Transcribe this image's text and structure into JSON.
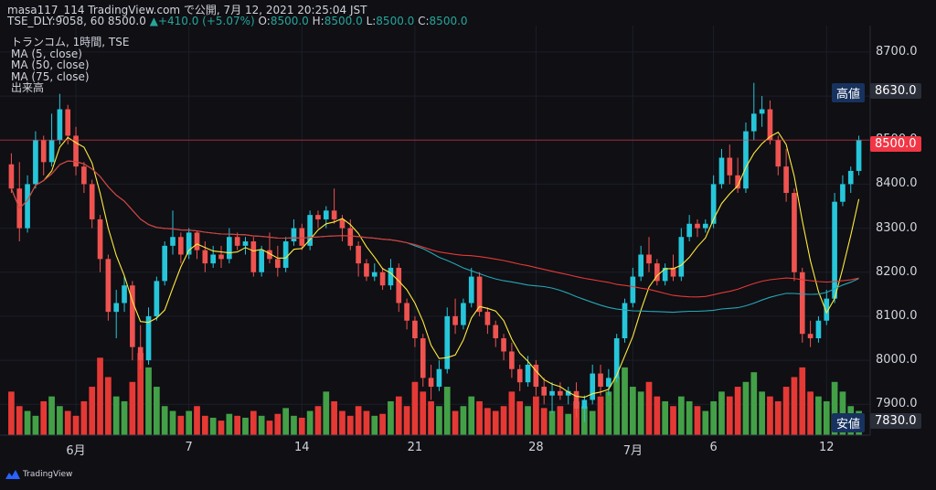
{
  "header": {
    "line1": "masa117_114 TradingView.com で公開, 7月 12, 2021 20:25:04 JST",
    "symbol_line": "TSE_DLY:9058, 60 8500.0",
    "change_arrow": "▲",
    "change": "+410.0 (+5.07%)",
    "ohlc": [
      {
        "label": "O:",
        "value": "8500.0"
      },
      {
        "label": "H:",
        "value": "8500.0"
      },
      {
        "label": "L:",
        "value": "8500.0"
      },
      {
        "label": "C:",
        "value": "8500.0"
      }
    ]
  },
  "legend": [
    "トランコム, 1時間, TSE",
    "MA (5, close)",
    "MA (50, close)",
    "MA (75, close)",
    "出来高"
  ],
  "price_tags": {
    "high_label": "高値",
    "high_value": "8630.0",
    "current_value": "8500.0",
    "low_label": "安値",
    "low_value": "7830.0"
  },
  "footer": {
    "brand": "TradingView"
  },
  "colors": {
    "background": "#0f0f14",
    "up": "#26c6da",
    "down": "#ef5350",
    "vol_up": "#43a047",
    "vol_down": "#e53935",
    "ma5": "#ffeb3b",
    "ma50": "#26a6b5",
    "ma75": "#e53935"
  },
  "chart_data": {
    "type": "candlestick",
    "title": "トランコム, 1時間, TSE",
    "ylim": [
      7830,
      8760
    ],
    "y_ticks": [
      "8700.0",
      "8600.0",
      "8500.0",
      "8400.0",
      "8300.0",
      "8200.0",
      "8100.0",
      "8000.0",
      "7900.0"
    ],
    "x_ticks": [
      "6月",
      "7",
      "14",
      "21",
      "28",
      "7月",
      "6",
      "12"
    ],
    "x_tick_bar_index": [
      8,
      22,
      36,
      50,
      65,
      77,
      87,
      101
    ],
    "highest": 8630.0,
    "lowest": 7830.0,
    "last_close": 8500.0,
    "ohlc": [
      {
        "o": 8445,
        "h": 8470,
        "l": 8380,
        "c": 8390
      },
      {
        "o": 8390,
        "h": 8450,
        "l": 8270,
        "c": 8300
      },
      {
        "o": 8300,
        "h": 8420,
        "l": 8290,
        "c": 8400
      },
      {
        "o": 8400,
        "h": 8520,
        "l": 8390,
        "c": 8500
      },
      {
        "o": 8500,
        "h": 8510,
        "l": 8420,
        "c": 8450
      },
      {
        "o": 8450,
        "h": 8560,
        "l": 8440,
        "c": 8500
      },
      {
        "o": 8500,
        "h": 8605,
        "l": 8490,
        "c": 8570
      },
      {
        "o": 8570,
        "h": 8580,
        "l": 8490,
        "c": 8510
      },
      {
        "o": 8510,
        "h": 8530,
        "l": 8420,
        "c": 8440
      },
      {
        "o": 8440,
        "h": 8450,
        "l": 8380,
        "c": 8400
      },
      {
        "o": 8400,
        "h": 8410,
        "l": 8300,
        "c": 8320
      },
      {
        "o": 8320,
        "h": 8330,
        "l": 8200,
        "c": 8230
      },
      {
        "o": 8230,
        "h": 8240,
        "l": 8090,
        "c": 8110
      },
      {
        "o": 8110,
        "h": 8160,
        "l": 8050,
        "c": 8130
      },
      {
        "o": 8130,
        "h": 8190,
        "l": 8110,
        "c": 8170
      },
      {
        "o": 8170,
        "h": 8180,
        "l": 8000,
        "c": 8030
      },
      {
        "o": 8030,
        "h": 8080,
        "l": 7980,
        "c": 8000
      },
      {
        "o": 8000,
        "h": 8120,
        "l": 7990,
        "c": 8100
      },
      {
        "o": 8100,
        "h": 8190,
        "l": 8090,
        "c": 8180
      },
      {
        "o": 8180,
        "h": 8270,
        "l": 8170,
        "c": 8260
      },
      {
        "o": 8260,
        "h": 8340,
        "l": 8240,
        "c": 8280
      },
      {
        "o": 8280,
        "h": 8290,
        "l": 8220,
        "c": 8240
      },
      {
        "o": 8240,
        "h": 8300,
        "l": 8230,
        "c": 8290
      },
      {
        "o": 8290,
        "h": 8295,
        "l": 8230,
        "c": 8250
      },
      {
        "o": 8250,
        "h": 8270,
        "l": 8200,
        "c": 8220
      },
      {
        "o": 8220,
        "h": 8260,
        "l": 8210,
        "c": 8240
      },
      {
        "o": 8240,
        "h": 8260,
        "l": 8210,
        "c": 8230
      },
      {
        "o": 8230,
        "h": 8300,
        "l": 8220,
        "c": 8280
      },
      {
        "o": 8280,
        "h": 8290,
        "l": 8250,
        "c": 8260
      },
      {
        "o": 8260,
        "h": 8280,
        "l": 8240,
        "c": 8270
      },
      {
        "o": 8270,
        "h": 8280,
        "l": 8190,
        "c": 8200
      },
      {
        "o": 8200,
        "h": 8260,
        "l": 8190,
        "c": 8250
      },
      {
        "o": 8250,
        "h": 8290,
        "l": 8220,
        "c": 8230
      },
      {
        "o": 8230,
        "h": 8260,
        "l": 8190,
        "c": 8210
      },
      {
        "o": 8210,
        "h": 8280,
        "l": 8200,
        "c": 8270
      },
      {
        "o": 8270,
        "h": 8320,
        "l": 8260,
        "c": 8300
      },
      {
        "o": 8300,
        "h": 8310,
        "l": 8250,
        "c": 8260
      },
      {
        "o": 8260,
        "h": 8340,
        "l": 8250,
        "c": 8330
      },
      {
        "o": 8330,
        "h": 8340,
        "l": 8300,
        "c": 8320
      },
      {
        "o": 8320,
        "h": 8350,
        "l": 8300,
        "c": 8340
      },
      {
        "o": 8340,
        "h": 8390,
        "l": 8310,
        "c": 8320
      },
      {
        "o": 8320,
        "h": 8330,
        "l": 8270,
        "c": 8300
      },
      {
        "o": 8300,
        "h": 8320,
        "l": 8250,
        "c": 8260
      },
      {
        "o": 8260,
        "h": 8270,
        "l": 8190,
        "c": 8220
      },
      {
        "o": 8220,
        "h": 8230,
        "l": 8180,
        "c": 8190
      },
      {
        "o": 8190,
        "h": 8220,
        "l": 8180,
        "c": 8200
      },
      {
        "o": 8200,
        "h": 8210,
        "l": 8160,
        "c": 8170
      },
      {
        "o": 8170,
        "h": 8230,
        "l": 8160,
        "c": 8210
      },
      {
        "o": 8210,
        "h": 8220,
        "l": 8110,
        "c": 8130
      },
      {
        "o": 8130,
        "h": 8140,
        "l": 8070,
        "c": 8090
      },
      {
        "o": 8090,
        "h": 8100,
        "l": 8030,
        "c": 8050
      },
      {
        "o": 8050,
        "h": 8060,
        "l": 7940,
        "c": 7960
      },
      {
        "o": 7960,
        "h": 7990,
        "l": 7910,
        "c": 7940
      },
      {
        "o": 7940,
        "h": 8000,
        "l": 7930,
        "c": 7980
      },
      {
        "o": 7980,
        "h": 8120,
        "l": 7970,
        "c": 8100
      },
      {
        "o": 8100,
        "h": 8140,
        "l": 8060,
        "c": 8080
      },
      {
        "o": 8080,
        "h": 8140,
        "l": 8070,
        "c": 8130
      },
      {
        "o": 8130,
        "h": 8210,
        "l": 8120,
        "c": 8190
      },
      {
        "o": 8190,
        "h": 8200,
        "l": 8100,
        "c": 8110
      },
      {
        "o": 8110,
        "h": 8120,
        "l": 8060,
        "c": 8080
      },
      {
        "o": 8080,
        "h": 8090,
        "l": 8030,
        "c": 8050
      },
      {
        "o": 8050,
        "h": 8060,
        "l": 8000,
        "c": 8020
      },
      {
        "o": 8020,
        "h": 8040,
        "l": 7960,
        "c": 7980
      },
      {
        "o": 7980,
        "h": 7990,
        "l": 7930,
        "c": 7950
      },
      {
        "o": 7950,
        "h": 8010,
        "l": 7940,
        "c": 7990
      },
      {
        "o": 7990,
        "h": 8000,
        "l": 7920,
        "c": 7940
      },
      {
        "o": 7940,
        "h": 7960,
        "l": 7900,
        "c": 7920
      },
      {
        "o": 7920,
        "h": 7950,
        "l": 7880,
        "c": 7930
      },
      {
        "o": 7930,
        "h": 7950,
        "l": 7910,
        "c": 7920
      },
      {
        "o": 7920,
        "h": 7940,
        "l": 7900,
        "c": 7930
      },
      {
        "o": 7930,
        "h": 7950,
        "l": 7870,
        "c": 7890
      },
      {
        "o": 7890,
        "h": 7920,
        "l": 7860,
        "c": 7910
      },
      {
        "o": 7910,
        "h": 7990,
        "l": 7900,
        "c": 7970
      },
      {
        "o": 7970,
        "h": 7990,
        "l": 7920,
        "c": 7940
      },
      {
        "o": 7940,
        "h": 7980,
        "l": 7920,
        "c": 7960
      },
      {
        "o": 7960,
        "h": 8060,
        "l": 7950,
        "c": 8050
      },
      {
        "o": 8050,
        "h": 8140,
        "l": 8040,
        "c": 8130
      },
      {
        "o": 8130,
        "h": 8210,
        "l": 8120,
        "c": 8190
      },
      {
        "o": 8190,
        "h": 8260,
        "l": 8180,
        "c": 8240
      },
      {
        "o": 8240,
        "h": 8280,
        "l": 8200,
        "c": 8220
      },
      {
        "o": 8220,
        "h": 8230,
        "l": 8170,
        "c": 8180
      },
      {
        "o": 8180,
        "h": 8220,
        "l": 8170,
        "c": 8210
      },
      {
        "o": 8210,
        "h": 8240,
        "l": 8180,
        "c": 8190
      },
      {
        "o": 8190,
        "h": 8300,
        "l": 8180,
        "c": 8280
      },
      {
        "o": 8280,
        "h": 8330,
        "l": 8270,
        "c": 8310
      },
      {
        "o": 8310,
        "h": 8320,
        "l": 8280,
        "c": 8300
      },
      {
        "o": 8300,
        "h": 8320,
        "l": 8290,
        "c": 8310
      },
      {
        "o": 8310,
        "h": 8420,
        "l": 8300,
        "c": 8400
      },
      {
        "o": 8400,
        "h": 8480,
        "l": 8390,
        "c": 8460
      },
      {
        "o": 8460,
        "h": 8490,
        "l": 8400,
        "c": 8420
      },
      {
        "o": 8420,
        "h": 8460,
        "l": 8380,
        "c": 8390
      },
      {
        "o": 8390,
        "h": 8540,
        "l": 8380,
        "c": 8520
      },
      {
        "o": 8520,
        "h": 8630,
        "l": 8500,
        "c": 8560
      },
      {
        "o": 8560,
        "h": 8600,
        "l": 8530,
        "c": 8570
      },
      {
        "o": 8570,
        "h": 8590,
        "l": 8490,
        "c": 8500
      },
      {
        "o": 8500,
        "h": 8510,
        "l": 8420,
        "c": 8440
      },
      {
        "o": 8440,
        "h": 8480,
        "l": 8360,
        "c": 8380
      },
      {
        "o": 8380,
        "h": 8390,
        "l": 8180,
        "c": 8200
      },
      {
        "o": 8200,
        "h": 8210,
        "l": 8040,
        "c": 8060
      },
      {
        "o": 8060,
        "h": 8090,
        "l": 8030,
        "c": 8050
      },
      {
        "o": 8050,
        "h": 8100,
        "l": 8040,
        "c": 8090
      },
      {
        "o": 8090,
        "h": 8160,
        "l": 8080,
        "c": 8140
      },
      {
        "o": 8140,
        "h": 8380,
        "l": 8130,
        "c": 8360
      },
      {
        "o": 8360,
        "h": 8420,
        "l": 8350,
        "c": 8400
      },
      {
        "o": 8400,
        "h": 8440,
        "l": 8380,
        "c": 8430
      },
      {
        "o": 8430,
        "h": 8510,
        "l": 8420,
        "c": 8500
      }
    ],
    "volume": [
      45,
      30,
      25,
      20,
      35,
      40,
      30,
      25,
      20,
      35,
      50,
      80,
      60,
      40,
      35,
      55,
      85,
      70,
      50,
      30,
      25,
      20,
      25,
      30,
      20,
      18,
      15,
      22,
      20,
      18,
      25,
      20,
      15,
      22,
      28,
      20,
      18,
      25,
      30,
      45,
      35,
      25,
      20,
      30,
      25,
      20,
      22,
      35,
      40,
      30,
      55,
      45,
      35,
      30,
      50,
      25,
      30,
      40,
      35,
      28,
      25,
      30,
      45,
      35,
      30,
      40,
      28,
      25,
      30,
      22,
      35,
      30,
      25,
      40,
      45,
      60,
      70,
      50,
      45,
      55,
      40,
      35,
      30,
      40,
      35,
      30,
      25,
      35,
      45,
      40,
      50,
      55,
      65,
      45,
      40,
      35,
      50,
      60,
      70,
      45,
      40,
      35,
      55,
      45,
      30,
      25
    ]
  }
}
